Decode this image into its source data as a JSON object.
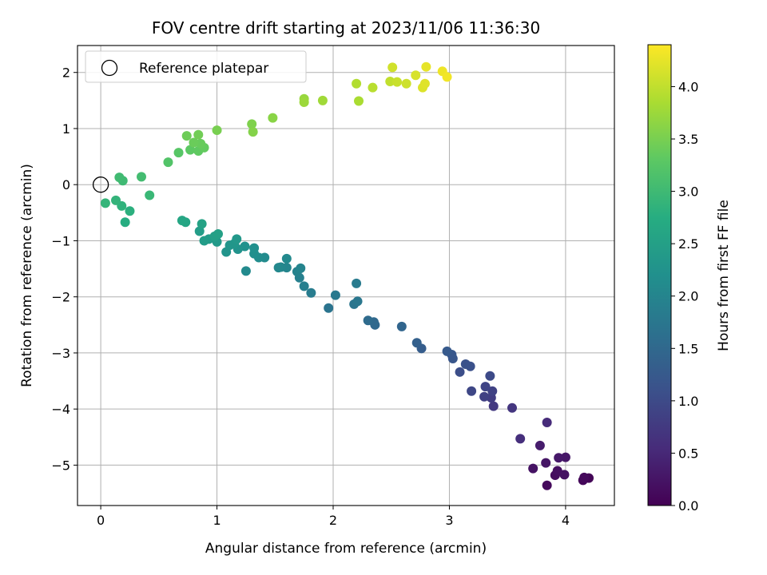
{
  "chart_data": {
    "type": "scatter",
    "title": "FOV centre drift starting at 2023/11/06 11:36:30",
    "xlabel": "Angular distance from reference (arcmin)",
    "ylabel": "Rotation from reference (arcmin)",
    "xlim": [
      -0.2,
      4.42
    ],
    "ylim": [
      -5.72,
      2.48
    ],
    "xticks": [
      0,
      1,
      2,
      3,
      4
    ],
    "yticks": [
      -5,
      -4,
      -3,
      -2,
      -1,
      0,
      1,
      2
    ],
    "grid": true,
    "legend": {
      "label": "Reference platepar",
      "placement": "top-left"
    },
    "reference_point": [
      0,
      0
    ],
    "colorbar": {
      "label": "Hours from first FF file",
      "colormap": "viridis",
      "range": [
        0.0,
        4.4
      ],
      "ticks": [
        "0.0",
        "0.5",
        "1.0",
        "1.5",
        "2.0",
        "2.5",
        "3.0",
        "3.5",
        "4.0"
      ]
    },
    "points": [
      [
        4.2,
        -5.23,
        0.05
      ],
      [
        4.15,
        -5.27,
        0.08
      ],
      [
        4.16,
        -5.22,
        0.1
      ],
      [
        3.84,
        -5.36,
        0.12
      ],
      [
        3.91,
        -5.18,
        0.15
      ],
      [
        3.93,
        -5.1,
        0.18
      ],
      [
        3.99,
        -5.17,
        0.2
      ],
      [
        3.72,
        -5.06,
        0.22
      ],
      [
        3.83,
        -4.96,
        0.25
      ],
      [
        4.0,
        -4.86,
        0.28
      ],
      [
        3.94,
        -4.87,
        0.3
      ],
      [
        3.78,
        -4.65,
        0.35
      ],
      [
        3.84,
        -4.24,
        0.55
      ],
      [
        3.61,
        -4.53,
        0.6
      ],
      [
        3.54,
        -3.98,
        0.7
      ],
      [
        3.38,
        -3.95,
        0.75
      ],
      [
        3.36,
        -3.8,
        0.8
      ],
      [
        3.3,
        -3.78,
        0.85
      ],
      [
        3.37,
        -3.68,
        0.88
      ],
      [
        3.31,
        -3.6,
        0.9
      ],
      [
        3.19,
        -3.68,
        0.95
      ],
      [
        3.35,
        -3.41,
        1.0
      ],
      [
        3.09,
        -3.34,
        1.05
      ],
      [
        3.18,
        -3.24,
        1.1
      ],
      [
        3.14,
        -3.2,
        1.12
      ],
      [
        3.03,
        -3.1,
        1.18
      ],
      [
        3.02,
        -3.03,
        1.2
      ],
      [
        2.98,
        -2.97,
        1.25
      ],
      [
        2.76,
        -2.92,
        1.3
      ],
      [
        2.72,
        -2.82,
        1.35
      ],
      [
        2.59,
        -2.53,
        1.45
      ],
      [
        2.36,
        -2.5,
        1.5
      ],
      [
        2.35,
        -2.45,
        1.52
      ],
      [
        2.3,
        -2.42,
        1.55
      ],
      [
        1.96,
        -2.2,
        1.7
      ],
      [
        2.18,
        -2.13,
        1.72
      ],
      [
        2.21,
        -2.08,
        1.75
      ],
      [
        2.02,
        -1.97,
        1.8
      ],
      [
        2.2,
        -1.76,
        1.82
      ],
      [
        1.81,
        -1.93,
        1.85
      ],
      [
        1.75,
        -1.81,
        1.9
      ],
      [
        1.71,
        -1.66,
        1.92
      ],
      [
        1.69,
        -1.55,
        1.95
      ],
      [
        1.72,
        -1.49,
        1.98
      ],
      [
        1.6,
        -1.48,
        2.0
      ],
      [
        1.55,
        -1.47,
        2.02
      ],
      [
        1.53,
        -1.48,
        2.05
      ],
      [
        1.6,
        -1.32,
        2.08
      ],
      [
        1.25,
        -1.54,
        2.1
      ],
      [
        1.41,
        -1.3,
        2.12
      ],
      [
        1.36,
        -1.3,
        2.15
      ],
      [
        1.32,
        -1.23,
        2.18
      ],
      [
        1.32,
        -1.13,
        2.2
      ],
      [
        1.24,
        -1.1,
        2.22
      ],
      [
        1.18,
        -1.15,
        2.25
      ],
      [
        1.08,
        -1.2,
        2.28
      ],
      [
        1.11,
        -1.08,
        2.3
      ],
      [
        1.15,
        -1.05,
        2.32
      ],
      [
        1.17,
        -0.97,
        2.35
      ],
      [
        1.0,
        -1.02,
        2.38
      ],
      [
        0.93,
        -0.97,
        2.4
      ],
      [
        0.89,
        -1.0,
        2.42
      ],
      [
        0.85,
        -0.83,
        2.45
      ],
      [
        0.98,
        -0.92,
        2.48
      ],
      [
        1.01,
        -0.88,
        2.5
      ],
      [
        0.87,
        -0.7,
        2.55
      ],
      [
        0.73,
        -0.67,
        2.6
      ],
      [
        0.7,
        -0.64,
        2.62
      ],
      [
        0.21,
        -0.67,
        2.75
      ],
      [
        0.25,
        -0.47,
        2.8
      ],
      [
        0.18,
        -0.38,
        2.85
      ],
      [
        0.13,
        -0.28,
        2.88
      ],
      [
        0.04,
        -0.33,
        2.9
      ],
      [
        0.42,
        -0.19,
        2.95
      ],
      [
        0.19,
        0.07,
        3.0
      ],
      [
        0.16,
        0.13,
        3.02
      ],
      [
        0.35,
        0.14,
        3.05
      ],
      [
        0.58,
        0.4,
        3.2
      ],
      [
        0.67,
        0.57,
        3.25
      ],
      [
        0.77,
        0.62,
        3.3
      ],
      [
        0.84,
        0.6,
        3.32
      ],
      [
        0.89,
        0.66,
        3.35
      ],
      [
        0.86,
        0.73,
        3.38
      ],
      [
        0.8,
        0.75,
        3.4
      ],
      [
        0.74,
        0.87,
        3.42
      ],
      [
        0.84,
        0.89,
        3.45
      ],
      [
        1.0,
        0.97,
        3.5
      ],
      [
        1.3,
        1.08,
        3.55
      ],
      [
        1.31,
        0.94,
        3.58
      ],
      [
        1.48,
        1.19,
        3.62
      ],
      [
        1.75,
        1.53,
        3.72
      ],
      [
        1.75,
        1.47,
        3.75
      ],
      [
        1.91,
        1.5,
        3.78
      ],
      [
        2.22,
        1.49,
        3.85
      ],
      [
        2.2,
        1.8,
        3.9
      ],
      [
        2.34,
        1.73,
        3.95
      ],
      [
        2.49,
        1.84,
        4.0
      ],
      [
        2.55,
        1.83,
        4.05
      ],
      [
        2.63,
        1.8,
        4.08
      ],
      [
        2.51,
        2.09,
        4.1
      ],
      [
        2.71,
        1.95,
        4.15
      ],
      [
        2.77,
        1.73,
        4.18
      ],
      [
        2.79,
        1.8,
        4.2
      ],
      [
        2.8,
        2.1,
        4.25
      ],
      [
        2.94,
        2.02,
        4.3
      ],
      [
        2.98,
        1.92,
        4.33
      ]
    ]
  }
}
